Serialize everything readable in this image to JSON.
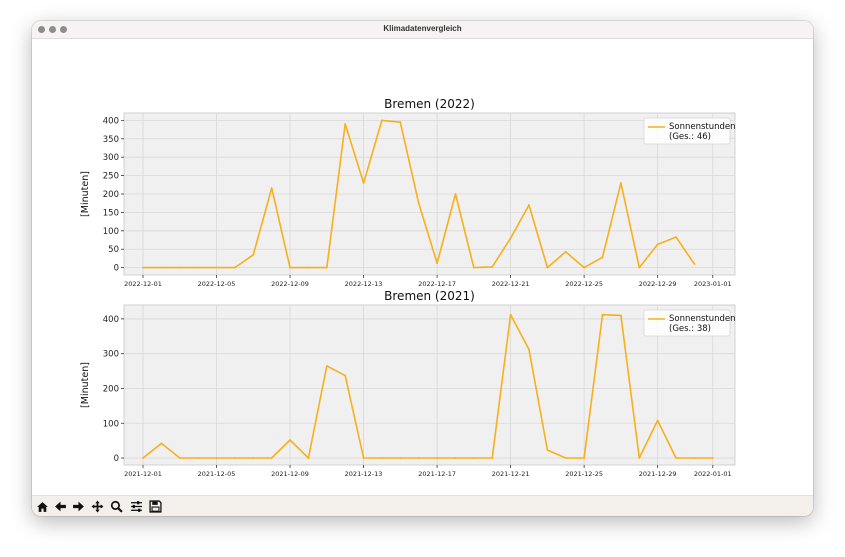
{
  "window": {
    "title": "Klimadatenvergleich"
  },
  "toolbar": {
    "buttons": [
      {
        "name": "home-icon"
      },
      {
        "name": "back-icon"
      },
      {
        "name": "forward-icon"
      },
      {
        "name": "pan-icon"
      },
      {
        "name": "zoom-icon"
      },
      {
        "name": "configure-subplots-icon"
      },
      {
        "name": "save-icon"
      }
    ]
  },
  "colors": {
    "line": "#f6b01c",
    "plot_bg": "#f0f0f0",
    "grid": "#d8d8d8"
  },
  "chart_data": [
    {
      "type": "line",
      "title": "Bremen (2022)",
      "ylabel": "[Minuten]",
      "xlabel": "",
      "x_start": "2022-12-01",
      "xticks": [
        "2022-12-01",
        "2022-12-05",
        "2022-12-09",
        "2022-12-13",
        "2022-12-17",
        "2022-12-21",
        "2022-12-25",
        "2022-12-29",
        "2023-01-01"
      ],
      "yticks": [
        "0",
        "50",
        "100",
        "150",
        "200",
        "250",
        "300",
        "350",
        "400"
      ],
      "ylim": [
        -20,
        420
      ],
      "grid": true,
      "legend_position": "top-right",
      "series": [
        {
          "name": "Sonnenstunden",
          "legend_sub": "(Ges.: 46)",
          "values": [
            0,
            0,
            0,
            0,
            0,
            0,
            35,
            216,
            0,
            0,
            0,
            390,
            230,
            400,
            395,
            175,
            12,
            200,
            0,
            2,
            80,
            170,
            0,
            43,
            0,
            28,
            230,
            0,
            63,
            83,
            10
          ]
        }
      ]
    },
    {
      "type": "line",
      "title": "Bremen (2021)",
      "ylabel": "[Minuten]",
      "xlabel": "",
      "x_start": "2021-12-01",
      "xticks": [
        "2021-12-01",
        "2021-12-05",
        "2021-12-09",
        "2021-12-13",
        "2021-12-17",
        "2021-12-21",
        "2021-12-25",
        "2021-12-29",
        "2022-01-01"
      ],
      "yticks": [
        "0",
        "100",
        "200",
        "300",
        "400"
      ],
      "ylim": [
        -20,
        440
      ],
      "grid": true,
      "legend_position": "top-right",
      "series": [
        {
          "name": "Sonnenstunden",
          "legend_sub": "(Ges.: 38)",
          "values": [
            0,
            42,
            0,
            0,
            0,
            0,
            0,
            0,
            52,
            0,
            265,
            237,
            0,
            0,
            0,
            0,
            0,
            0,
            0,
            0,
            412,
            312,
            23,
            0,
            0,
            412,
            410,
            0,
            108,
            0,
            0,
            0
          ]
        }
      ]
    }
  ]
}
